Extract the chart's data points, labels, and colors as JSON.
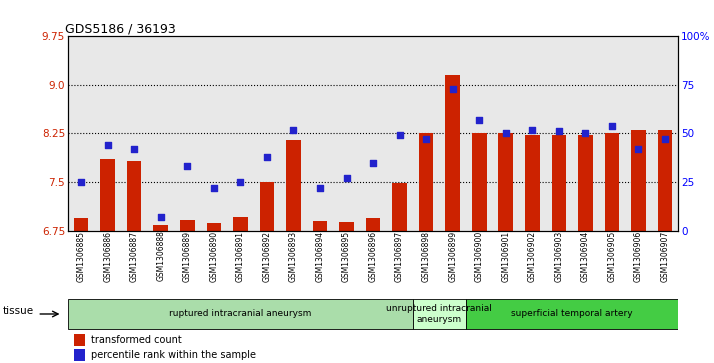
{
  "title": "GDS5186 / 36193",
  "samples": [
    "GSM1306885",
    "GSM1306886",
    "GSM1306887",
    "GSM1306888",
    "GSM1306889",
    "GSM1306890",
    "GSM1306891",
    "GSM1306892",
    "GSM1306893",
    "GSM1306894",
    "GSM1306895",
    "GSM1306896",
    "GSM1306897",
    "GSM1306898",
    "GSM1306899",
    "GSM1306900",
    "GSM1306901",
    "GSM1306902",
    "GSM1306903",
    "GSM1306904",
    "GSM1306905",
    "GSM1306906",
    "GSM1306907"
  ],
  "bar_values": [
    6.95,
    7.85,
    7.82,
    6.83,
    6.92,
    6.87,
    6.96,
    7.5,
    8.15,
    6.9,
    6.88,
    6.95,
    7.48,
    8.25,
    9.15,
    8.25,
    8.25,
    8.22,
    8.22,
    8.22,
    8.25,
    8.3,
    8.3
  ],
  "dot_values": [
    25,
    44,
    42,
    7,
    33,
    22,
    25,
    38,
    52,
    22,
    27,
    35,
    49,
    47,
    73,
    57,
    50,
    52,
    51,
    50,
    54,
    42,
    47
  ],
  "ylim": [
    6.75,
    9.75
  ],
  "y2lim": [
    0,
    100
  ],
  "yticks": [
    6.75,
    7.5,
    8.25,
    9.0,
    9.75
  ],
  "y2ticks": [
    0,
    25,
    50,
    75,
    100
  ],
  "grid_lines": [
    7.5,
    8.25,
    9.0
  ],
  "bar_color": "#cc2200",
  "dot_color": "#2222cc",
  "plot_bg": "#e8e8e8",
  "groups": [
    {
      "label": "ruptured intracranial aneurysm",
      "start": 0,
      "end": 12,
      "color": "#aaddaa"
    },
    {
      "label": "unruptured intracranial\naneurysm",
      "start": 13,
      "end": 14,
      "color": "#ccffcc"
    },
    {
      "label": "superficial temporal artery",
      "start": 15,
      "end": 22,
      "color": "#44cc44"
    }
  ],
  "legend_items": [
    {
      "label": "transformed count",
      "color": "#cc2200"
    },
    {
      "label": "percentile rank within the sample",
      "color": "#2222cc"
    }
  ],
  "tissue_label": "tissue",
  "ytick_color": "#cc2200",
  "y2tick_color": "#0000ff"
}
